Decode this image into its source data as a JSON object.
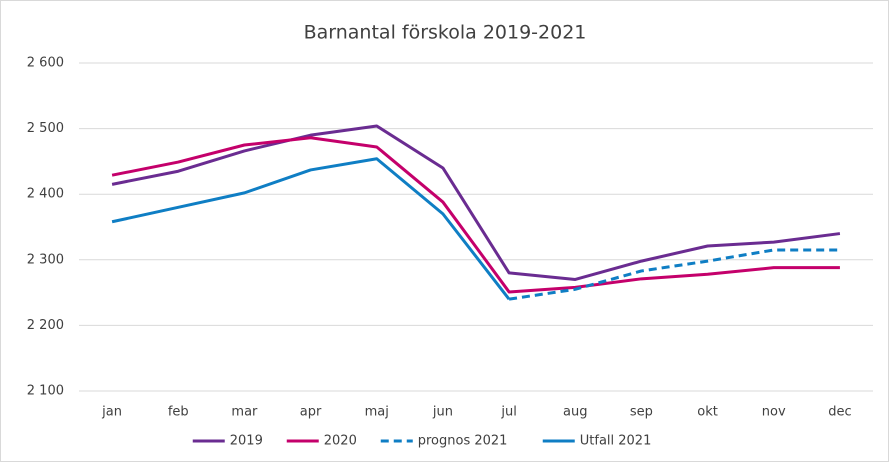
{
  "chart_data": {
    "type": "line",
    "title": "Barnantal förskola 2019-2021",
    "categories": [
      "jan",
      "feb",
      "mar",
      "apr",
      "maj",
      "jun",
      "jul",
      "aug",
      "sep",
      "okt",
      "nov",
      "dec"
    ],
    "series": [
      {
        "name": "2019",
        "color": "#6a2c91",
        "dashed": false,
        "values": [
          2415,
          2435,
          2466,
          2490,
          2504,
          2440,
          2280,
          2270,
          2298,
          2321,
          2327,
          2340
        ]
      },
      {
        "name": "2020",
        "color": "#c4006b",
        "dashed": false,
        "values": [
          2429,
          2449,
          2475,
          2486,
          2472,
          2388,
          2251,
          2258,
          2271,
          2278,
          2288,
          2288
        ]
      },
      {
        "name": "prognos 2021",
        "color": "#0f7ec4",
        "dashed": true,
        "values": [
          null,
          null,
          null,
          null,
          null,
          null,
          2240,
          2255,
          2283,
          2298,
          2315,
          2315
        ]
      },
      {
        "name": "Utfall 2021",
        "color": "#0f7ec4",
        "dashed": false,
        "values": [
          2358,
          2380,
          2402,
          2437,
          2454,
          2370,
          2240,
          null,
          null,
          null,
          null,
          null
        ]
      }
    ],
    "ylim": [
      2100,
      2600
    ],
    "yticks": [
      {
        "value": 2100,
        "label": "2 100"
      },
      {
        "value": 2200,
        "label": "2 200"
      },
      {
        "value": 2300,
        "label": "2 300"
      },
      {
        "value": 2400,
        "label": "2 400"
      },
      {
        "value": 2500,
        "label": "2 500"
      },
      {
        "value": 2600,
        "label": "2 600"
      }
    ],
    "grid": true,
    "legend": "bottom"
  }
}
